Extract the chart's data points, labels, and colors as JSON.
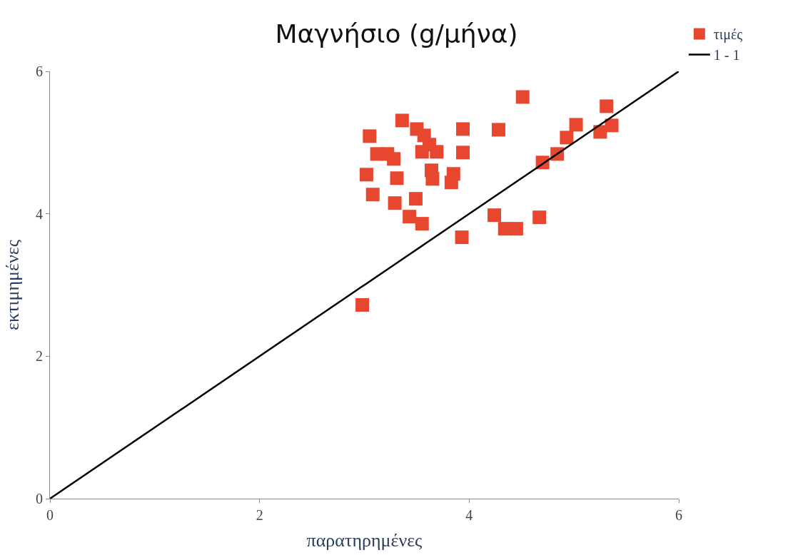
{
  "chart_data": {
    "type": "scatter",
    "title": "Μαγνήσιο (g/μήνα)",
    "xlabel": "παρατηρημένες",
    "ylabel": "εκτιμημένες",
    "xlim": [
      0,
      6
    ],
    "ylim": [
      0,
      6
    ],
    "xticks": [
      0,
      2,
      4,
      6
    ],
    "yticks": [
      0,
      2,
      4,
      6
    ],
    "grid": false,
    "legend": "top right",
    "marker": "square",
    "series": [
      {
        "name": "τιμές",
        "color": "#e8472f",
        "x": [
          2.98,
          3.05,
          3.02,
          3.08,
          3.12,
          3.22,
          3.28,
          3.31,
          3.29,
          3.36,
          3.43,
          3.49,
          3.5,
          3.55,
          3.57,
          3.55,
          3.62,
          3.64,
          3.65,
          3.69,
          3.85,
          3.83,
          3.93,
          3.94,
          3.94,
          4.24,
          4.28,
          4.34,
          4.45,
          4.51,
          4.67,
          4.7,
          4.84,
          4.93,
          5.02,
          5.25,
          5.31,
          5.36
        ],
        "values": [
          2.72,
          5.09,
          4.55,
          4.27,
          4.84,
          4.84,
          4.77,
          4.5,
          4.15,
          5.31,
          3.96,
          4.21,
          5.19,
          3.86,
          5.1,
          4.87,
          4.97,
          4.61,
          4.49,
          4.87,
          4.56,
          4.44,
          3.67,
          5.19,
          4.86,
          3.98,
          5.18,
          3.79,
          3.79,
          5.64,
          3.95,
          4.72,
          4.84,
          5.07,
          5.25,
          5.15,
          5.51,
          5.24
        ]
      },
      {
        "name": "1 - 1",
        "type": "line",
        "color": "#000000",
        "marker": "none",
        "line_style": "solid",
        "x": [
          0,
          6
        ],
        "values": [
          0,
          6
        ]
      }
    ]
  }
}
